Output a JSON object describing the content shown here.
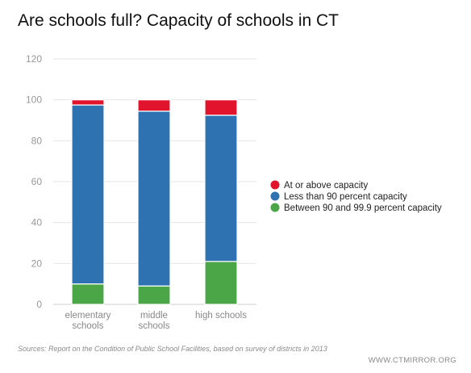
{
  "chart_data": {
    "type": "bar",
    "stacked": true,
    "title": "Are schools full? Capacity of schools in CT",
    "categories": [
      "elementary schools",
      "middle schools",
      "high schools"
    ],
    "category_lines": [
      [
        "elementary",
        "schools"
      ],
      [
        "middle",
        "schools"
      ],
      [
        "high schools"
      ]
    ],
    "series": [
      {
        "name": "Between 90 and 99.9 percent capacity",
        "color": "#4aa646",
        "values": [
          10,
          9,
          21
        ]
      },
      {
        "name": "Less than 90 percent capacity",
        "color": "#2e72b2",
        "values": [
          87.5,
          85.5,
          71.5
        ]
      },
      {
        "name": "At or above capacity",
        "color": "#e2132c",
        "values": [
          2.5,
          5.5,
          7.5
        ]
      }
    ],
    "legend_order": [
      "At or above capacity",
      "Less than 90 percent capacity",
      "Between 90 and 99.9 percent capacity"
    ],
    "yticks": [
      "0",
      "20",
      "40",
      "60",
      "80",
      "100",
      "120"
    ],
    "ylim": [
      0,
      120
    ],
    "grid": true,
    "legend_position": "right"
  },
  "footer": {
    "source": "Sources: Report on the Condition of Public School Facilities, based on survey of districts in 2013",
    "credit": "WWW.CTMIRROR.ORG"
  }
}
